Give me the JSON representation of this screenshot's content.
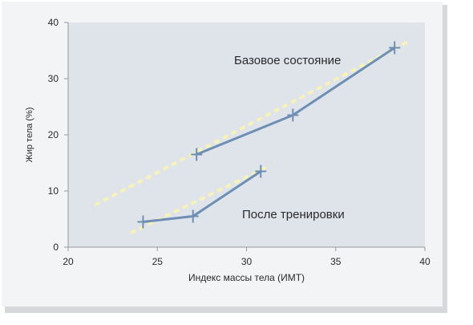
{
  "chart_data": {
    "type": "line",
    "xlabel": "Индекс массы тела (ИМТ)",
    "ylabel": "Жир тела (%)",
    "xlim": [
      20,
      40
    ],
    "ylim": [
      0,
      40
    ],
    "x_ticks": [
      "20",
      "25",
      "30",
      "35",
      "40"
    ],
    "y_ticks": [
      "0",
      "10",
      "20",
      "30",
      "40"
    ],
    "grid": false,
    "series": [
      {
        "name": "Базовое состояние",
        "x": [
          27.2,
          32.6,
          38.3
        ],
        "y": [
          16.5,
          23.5,
          35.5
        ],
        "trend": {
          "x": [
            21.5,
            39.0
          ],
          "y": [
            7.5,
            36.5
          ]
        }
      },
      {
        "name": "После тренировки",
        "x": [
          24.2,
          27.0,
          30.8
        ],
        "y": [
          4.5,
          5.5,
          13.5
        ],
        "trend": {
          "x": [
            23.5,
            31.3
          ],
          "y": [
            2.5,
            14.5
          ]
        }
      }
    ],
    "colors": {
      "plot_background": "#dfe4ea",
      "page_background": "#f3f4f6",
      "series_line": "#6d8fb3",
      "trend_line": "#f6f2b8",
      "axis": "#9a9a9a",
      "text": "#2a2a2a"
    }
  }
}
